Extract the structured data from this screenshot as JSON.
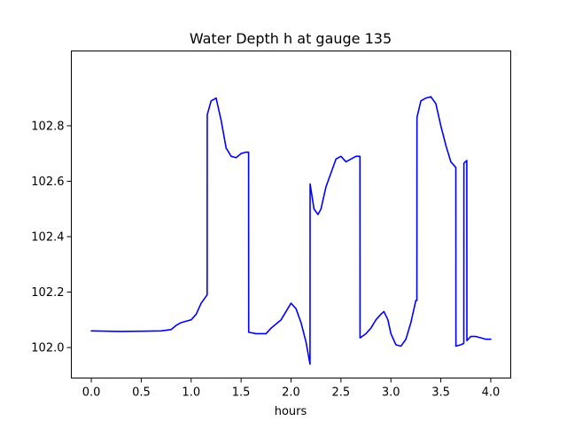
{
  "chart_data": {
    "type": "line",
    "title": "Water Depth h at gauge 135",
    "xlabel": "hours",
    "ylabel": "",
    "xlim": [
      -0.2,
      4.2
    ],
    "ylim": [
      101.89,
      103.07
    ],
    "xticks": [
      0.0,
      0.5,
      1.0,
      1.5,
      2.0,
      2.5,
      3.0,
      3.5,
      4.0
    ],
    "xtick_labels": [
      "0.0",
      "0.5",
      "1.0",
      "1.5",
      "2.0",
      "2.5",
      "3.0",
      "3.5",
      "4.0"
    ],
    "yticks": [
      102.0,
      102.2,
      102.4,
      102.6,
      102.8
    ],
    "ytick_labels": [
      "102.0",
      "102.2",
      "102.4",
      "102.6",
      "102.8"
    ],
    "grid": false,
    "legend": false,
    "series": [
      {
        "color": "#0000ff",
        "x": [
          0.0,
          0.3,
          0.5,
          0.7,
          0.8,
          0.85,
          0.9,
          0.95,
          1.0,
          1.05,
          1.1,
          1.16,
          1.161,
          1.2,
          1.25,
          1.3,
          1.35,
          1.4,
          1.45,
          1.5,
          1.55,
          1.575,
          1.576,
          1.65,
          1.75,
          1.8,
          1.9,
          1.95,
          2.0,
          2.05,
          2.1,
          2.15,
          2.19,
          2.191,
          2.23,
          2.27,
          2.3,
          2.35,
          2.4,
          2.45,
          2.5,
          2.55,
          2.6,
          2.65,
          2.69,
          2.691,
          2.75,
          2.8,
          2.85,
          2.9,
          2.93,
          2.97,
          3.0,
          3.05,
          3.1,
          3.15,
          3.2,
          3.25,
          3.26,
          3.261,
          3.3,
          3.35,
          3.4,
          3.45,
          3.5,
          3.55,
          3.6,
          3.65,
          3.651,
          3.7,
          3.73,
          3.731,
          3.76,
          3.761,
          3.8,
          3.85,
          3.9,
          3.95,
          4.0
        ],
        "y": [
          102.06,
          102.058,
          102.059,
          102.06,
          102.065,
          102.08,
          102.09,
          102.095,
          102.1,
          102.12,
          102.16,
          102.19,
          102.84,
          102.89,
          102.9,
          102.82,
          102.72,
          102.69,
          102.685,
          102.7,
          102.705,
          102.705,
          102.055,
          102.05,
          102.05,
          102.07,
          102.1,
          102.13,
          102.16,
          102.14,
          102.09,
          102.02,
          101.94,
          102.59,
          102.5,
          102.48,
          102.5,
          102.58,
          102.63,
          102.68,
          102.69,
          102.67,
          102.68,
          102.69,
          102.69,
          102.035,
          102.05,
          102.07,
          102.1,
          102.12,
          102.13,
          102.1,
          102.05,
          102.01,
          102.005,
          102.03,
          102.09,
          102.17,
          102.17,
          102.83,
          102.89,
          102.9,
          102.905,
          102.88,
          102.8,
          102.73,
          102.67,
          102.65,
          102.005,
          102.01,
          102.015,
          102.665,
          102.675,
          102.025,
          102.04,
          102.04,
          102.035,
          102.03,
          102.03
        ]
      }
    ]
  }
}
